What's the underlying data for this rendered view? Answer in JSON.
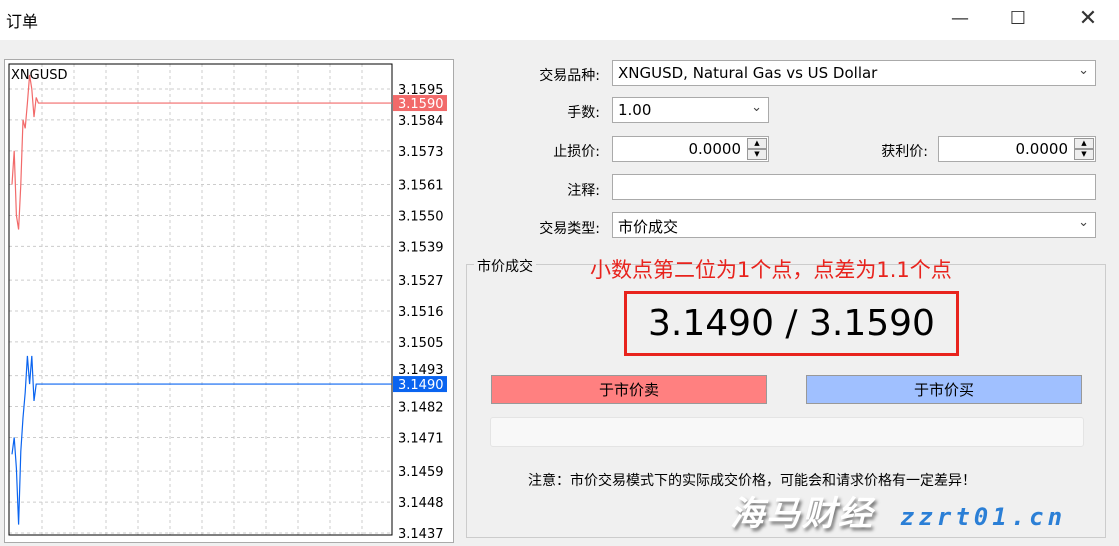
{
  "window": {
    "title": "订单",
    "minimize_icon": "minimize-icon",
    "maximize_icon": "maximize-icon",
    "close_icon": "close-icon"
  },
  "chart": {
    "symbol": "XNGUSD",
    "ask_price": "3.1590",
    "bid_price": "3.1490",
    "ask_color": "#f26a6a",
    "bid_color": "#0a64f0",
    "price_ticks": [
      "3.1595",
      "3.1584",
      "3.1573",
      "3.1561",
      "3.1550",
      "3.1539",
      "3.1527",
      "3.1516",
      "3.1505",
      "3.1493",
      "3.1482",
      "3.1471",
      "3.1459",
      "3.1448",
      "3.1437"
    ],
    "ask_ticks": [
      3.1561,
      3.1573,
      3.155,
      3.1545,
      3.1561,
      3.1584,
      3.1581,
      3.159,
      3.16,
      3.1595,
      3.1585,
      3.1592,
      3.159
    ],
    "bid_ticks": [
      3.1465,
      3.1471,
      3.146,
      3.144,
      3.1466,
      3.1478,
      3.1487,
      3.15,
      3.149,
      3.15,
      3.1484,
      3.149,
      3.149
    ]
  },
  "form": {
    "symbol_label": "交易品种:",
    "symbol_value": "XNGUSD, Natural Gas vs US Dollar",
    "volume_label": "手数:",
    "volume_value": "1.00",
    "sl_label": "止损价:",
    "sl_value": "0.0000",
    "tp_label": "获利价:",
    "tp_value": "0.0000",
    "comment_label": "注释:",
    "comment_value": "",
    "type_label": "交易类型:",
    "type_value": "市价成交"
  },
  "market": {
    "group_title": "市价成交",
    "annotation": "小数点第二位为1个点，点差为1.1个点",
    "quote": "3.1490 / 3.1590",
    "sell_label": "于市价卖",
    "buy_label": "于市价买",
    "sell_color": "#ff8080",
    "buy_color": "#a0c0ff",
    "note": "注意：市价交易模式下的实际成交价格，可能会和请求价格有一定差异！"
  },
  "watermark": {
    "text": "海马财经",
    "url": "zzrt01.cn"
  }
}
